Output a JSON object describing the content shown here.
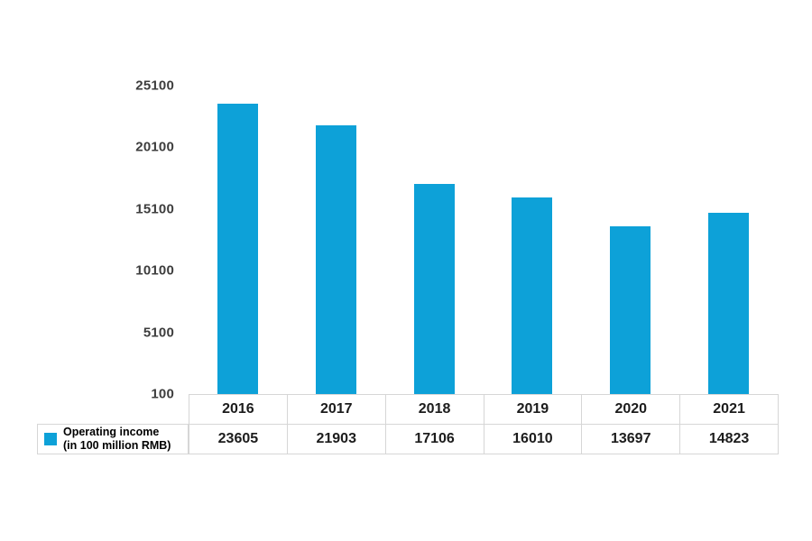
{
  "chart_data": {
    "type": "bar",
    "title": "",
    "xlabel": "",
    "ylabel": "",
    "categories": [
      "2016",
      "2017",
      "2018",
      "2019",
      "2020",
      "2021"
    ],
    "values": [
      23605,
      21903,
      17106,
      16010,
      13697,
      14823
    ],
    "series_name": "Operating income (in 100 million RMB)",
    "ylim": [
      100,
      25100
    ],
    "yticks": [
      25100,
      20100,
      15100,
      10100,
      5100,
      100
    ],
    "bar_color": "#0da1d8",
    "grid": false,
    "legend_position": "bottom-left",
    "data_table_shown": true
  },
  "legend": {
    "line1": "Operating income",
    "line2": "(in 100 million RMB)"
  }
}
